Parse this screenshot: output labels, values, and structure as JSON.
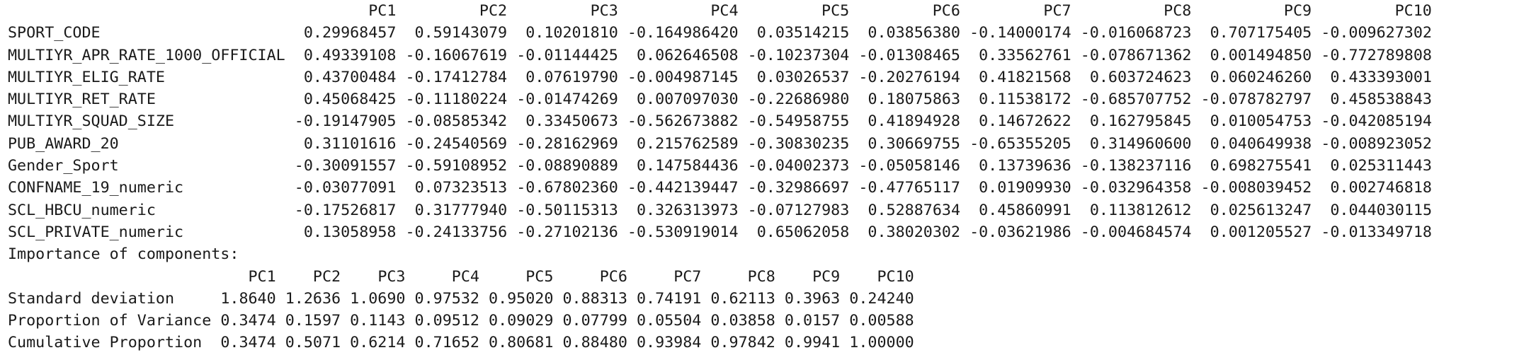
{
  "loadings": {
    "columns": [
      "PC1",
      "PC2",
      "PC3",
      "PC4",
      "PC5",
      "PC6",
      "PC7",
      "PC8",
      "PC9",
      "PC10"
    ],
    "rows": [
      {
        "name": "SPORT_CODE",
        "values": [
          "0.29968457",
          "0.59143079",
          "0.10201810",
          "-0.164986420",
          "0.03514215",
          "0.03856380",
          "-0.14000174",
          "-0.016068723",
          "0.707175405",
          "-0.009627302"
        ]
      },
      {
        "name": "MULTIYR_APR_RATE_1000_OFFICIAL",
        "values": [
          "0.49339108",
          "-0.16067619",
          "-0.01144425",
          "0.062646508",
          "-0.10237304",
          "-0.01308465",
          "0.33562761",
          "-0.078671362",
          "0.001494850",
          "-0.772789808"
        ]
      },
      {
        "name": "MULTIYR_ELIG_RATE",
        "values": [
          "0.43700484",
          "-0.17412784",
          "0.07619790",
          "-0.004987145",
          "0.03026537",
          "-0.20276194",
          "0.41821568",
          "0.603724623",
          "0.060246260",
          "0.433393001"
        ]
      },
      {
        "name": "MULTIYR_RET_RATE",
        "values": [
          "0.45068425",
          "-0.11180224",
          "-0.01474269",
          "0.007097030",
          "-0.22686980",
          "0.18075863",
          "0.11538172",
          "-0.685707752",
          "-0.078782797",
          "0.458538843"
        ]
      },
      {
        "name": "MULTIYR_SQUAD_SIZE",
        "values": [
          "-0.19147905",
          "-0.08585342",
          "0.33450673",
          "-0.562673882",
          "-0.54958755",
          "0.41894928",
          "0.14672622",
          "0.162795845",
          "0.010054753",
          "-0.042085194"
        ]
      },
      {
        "name": "PUB_AWARD_20",
        "values": [
          "0.31101616",
          "-0.24540569",
          "-0.28162969",
          "0.215762589",
          "-0.30830235",
          "0.30669755",
          "-0.65355205",
          "0.314960600",
          "0.040649938",
          "-0.008923052"
        ]
      },
      {
        "name": "Gender_Sport",
        "values": [
          "-0.30091557",
          "-0.59108952",
          "-0.08890889",
          "0.147584436",
          "-0.04002373",
          "-0.05058146",
          "0.13739636",
          "-0.138237116",
          "0.698275541",
          "0.025311443"
        ]
      },
      {
        "name": "CONFNAME_19_numeric",
        "values": [
          "-0.03077091",
          "0.07323513",
          "-0.67802360",
          "-0.442139447",
          "-0.32986697",
          "-0.47765117",
          "0.01909930",
          "-0.032964358",
          "-0.008039452",
          "0.002746818"
        ]
      },
      {
        "name": "SCL_HBCU_numeric",
        "values": [
          "-0.17526817",
          "0.31777940",
          "-0.50115313",
          "0.326313973",
          "-0.07127983",
          "0.52887634",
          "0.45860991",
          "0.113812612",
          "0.025613247",
          "0.044030115"
        ]
      },
      {
        "name": "SCL_PRIVATE_numeric",
        "values": [
          "0.13058958",
          "-0.24133756",
          "-0.27102136",
          "-0.530919014",
          "0.65062058",
          "0.38020302",
          "-0.03621986",
          "-0.004684574",
          "0.001205527",
          "-0.013349718"
        ]
      }
    ]
  },
  "importance": {
    "title": "Importance of components:",
    "columns": [
      "PC1",
      "PC2",
      "PC3",
      "PC4",
      "PC5",
      "PC6",
      "PC7",
      "PC8",
      "PC9",
      "PC10"
    ],
    "rows": [
      {
        "name": "Standard deviation",
        "values": [
          "1.8640",
          "1.2636",
          "1.0690",
          "0.97532",
          "0.95020",
          "0.88313",
          "0.74191",
          "0.62113",
          "0.3963",
          "0.24240"
        ]
      },
      {
        "name": "Proportion of Variance",
        "values": [
          "0.3474",
          "0.1597",
          "0.1143",
          "0.09512",
          "0.09029",
          "0.07799",
          "0.05504",
          "0.03858",
          "0.0157",
          "0.00588"
        ]
      },
      {
        "name": "Cumulative Proportion",
        "values": [
          "0.3474",
          "0.5071",
          "0.6214",
          "0.71652",
          "0.80681",
          "0.88480",
          "0.93984",
          "0.97842",
          "0.9941",
          "1.00000"
        ]
      }
    ]
  }
}
